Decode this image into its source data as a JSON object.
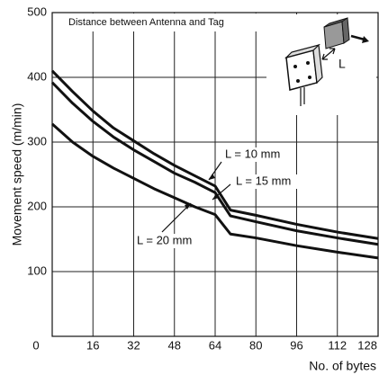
{
  "chart_data": {
    "type": "line",
    "title": "Distance between Antenna and Tag",
    "diagram_label": "L",
    "x_label": "No. of bytes",
    "y_label": "Movement speed (m/min)",
    "x": [
      0,
      8,
      16,
      24,
      32,
      40,
      48,
      56,
      64,
      70,
      80,
      96,
      112,
      128
    ],
    "series": [
      {
        "name": "L = 10 mm",
        "color": "#111111",
        "values": [
          410,
          378,
          348,
          322,
          302,
          282,
          264,
          248,
          232,
          195,
          187,
          173,
          161,
          151
        ]
      },
      {
        "name": "L = 15 mm",
        "color": "#111111",
        "values": [
          392,
          360,
          332,
          308,
          288,
          270,
          252,
          238,
          222,
          186,
          177,
          163,
          152,
          142
        ]
      },
      {
        "name": "L = 20 mm",
        "color": "#111111",
        "values": [
          328,
          300,
          278,
          260,
          244,
          228,
          214,
          200,
          188,
          158,
          152,
          140,
          130,
          121
        ]
      }
    ],
    "xlim": [
      0,
      128
    ],
    "ylim": [
      0,
      500
    ],
    "xticks": [
      0,
      16,
      32,
      48,
      64,
      80,
      96,
      112,
      128
    ],
    "yticks": [
      100,
      200,
      300,
      400,
      500
    ],
    "grid": true
  }
}
